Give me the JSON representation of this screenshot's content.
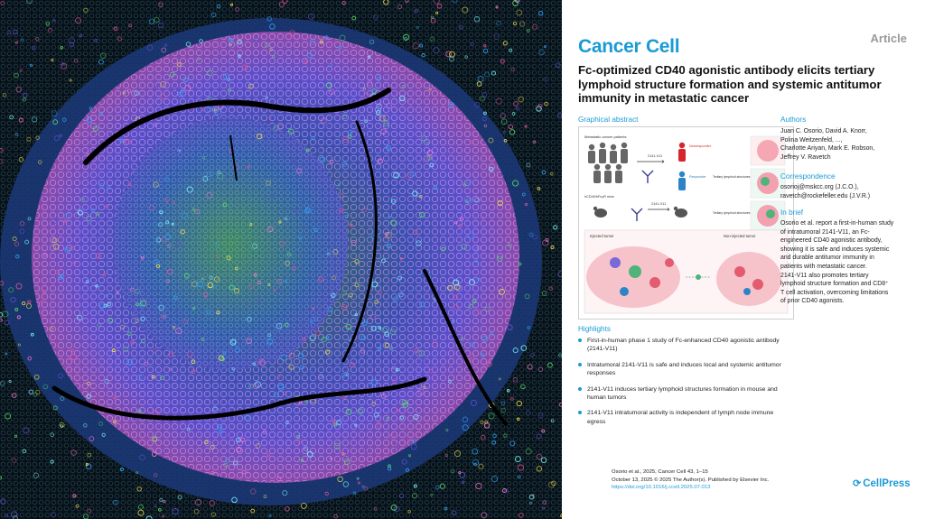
{
  "image": {
    "colors": {
      "bg": "#061018",
      "dense_purple": "#5a4fc8",
      "pink": "#e4579a",
      "green": "#5be06a",
      "cyan": "#2fa9ff",
      "yellow": "#f2e14d",
      "fold": "#000000"
    }
  },
  "header": {
    "journal": "Cancer Cell",
    "article_type": "Article",
    "title": "Fc-optimized CD40 agonistic antibody elicits tertiary lymphoid structure formation and systemic antitumor immunity in metastatic cancer"
  },
  "graphical_abstract": {
    "heading": "Graphical abstract",
    "labels": {
      "patients": "Metastatic cancer patients",
      "mouse": "hCD40/hFcγR mice",
      "drug": "2141-V11",
      "drug2": "2141-V11",
      "nonresponder": "Nonresponder",
      "responder": "Responder",
      "tls1": "Tertiary lymphoid structures",
      "tls2": "Tertiary lymphoid structures",
      "injected": "Injected tumor",
      "noninjected": "Non-injected tumor"
    }
  },
  "authors": {
    "heading": "Authors",
    "lines": [
      "Juan C. Osorio, David A. Knorr,",
      "Polina Weitzenfeld, ...,",
      "Charlotte Ariyan, Mark E. Robson,",
      "Jeffrey V. Ravetch"
    ]
  },
  "correspondence": {
    "heading": "Correspondence",
    "lines": [
      "osorioj@mskcc.org (J.C.O.),",
      "ravetch@rockefeller.edu (J.V.R.)"
    ]
  },
  "in_brief": {
    "heading": "In brief",
    "lines": [
      "Osorio et al. report a first-in-human study",
      "of intratumoral 2141-V11, an Fc-",
      "engineered CD40 agonistic antibody,",
      "showing it is safe and induces systemic",
      "and durable antitumor immunity in",
      "patients with metastatic cancer.",
      "2141-V11 also promotes tertiary",
      "lymphoid structure formation and CD8⁺",
      "T cell activation, overcoming limitations",
      "of prior CD40 agonists."
    ]
  },
  "highlights": {
    "heading": "Highlights",
    "items": [
      "First-in-human phase 1 study of Fc-enhanced CD40 agonistic antibody (2141-V11)",
      "Intratumoral 2141-V11 is safe and induces local and systemic antitumor responses",
      "2141-V11 induces tertiary lymphoid structures formation in mouse and human tumors",
      "2141-V11 intratumoral activity is independent of lymph node immune egress"
    ]
  },
  "citation": {
    "line1": "Osorio et al., 2025, Cancer Cell 43, 1–15",
    "line2": "October 13, 2025 © 2025 The Author(s). Published by Elsevier Inc.",
    "doi": "https://doi.org/10.1016/j.ccell.2025.07.013"
  },
  "publisher": {
    "name": "CellPress",
    "icon": "cellpress-logo-icon"
  }
}
